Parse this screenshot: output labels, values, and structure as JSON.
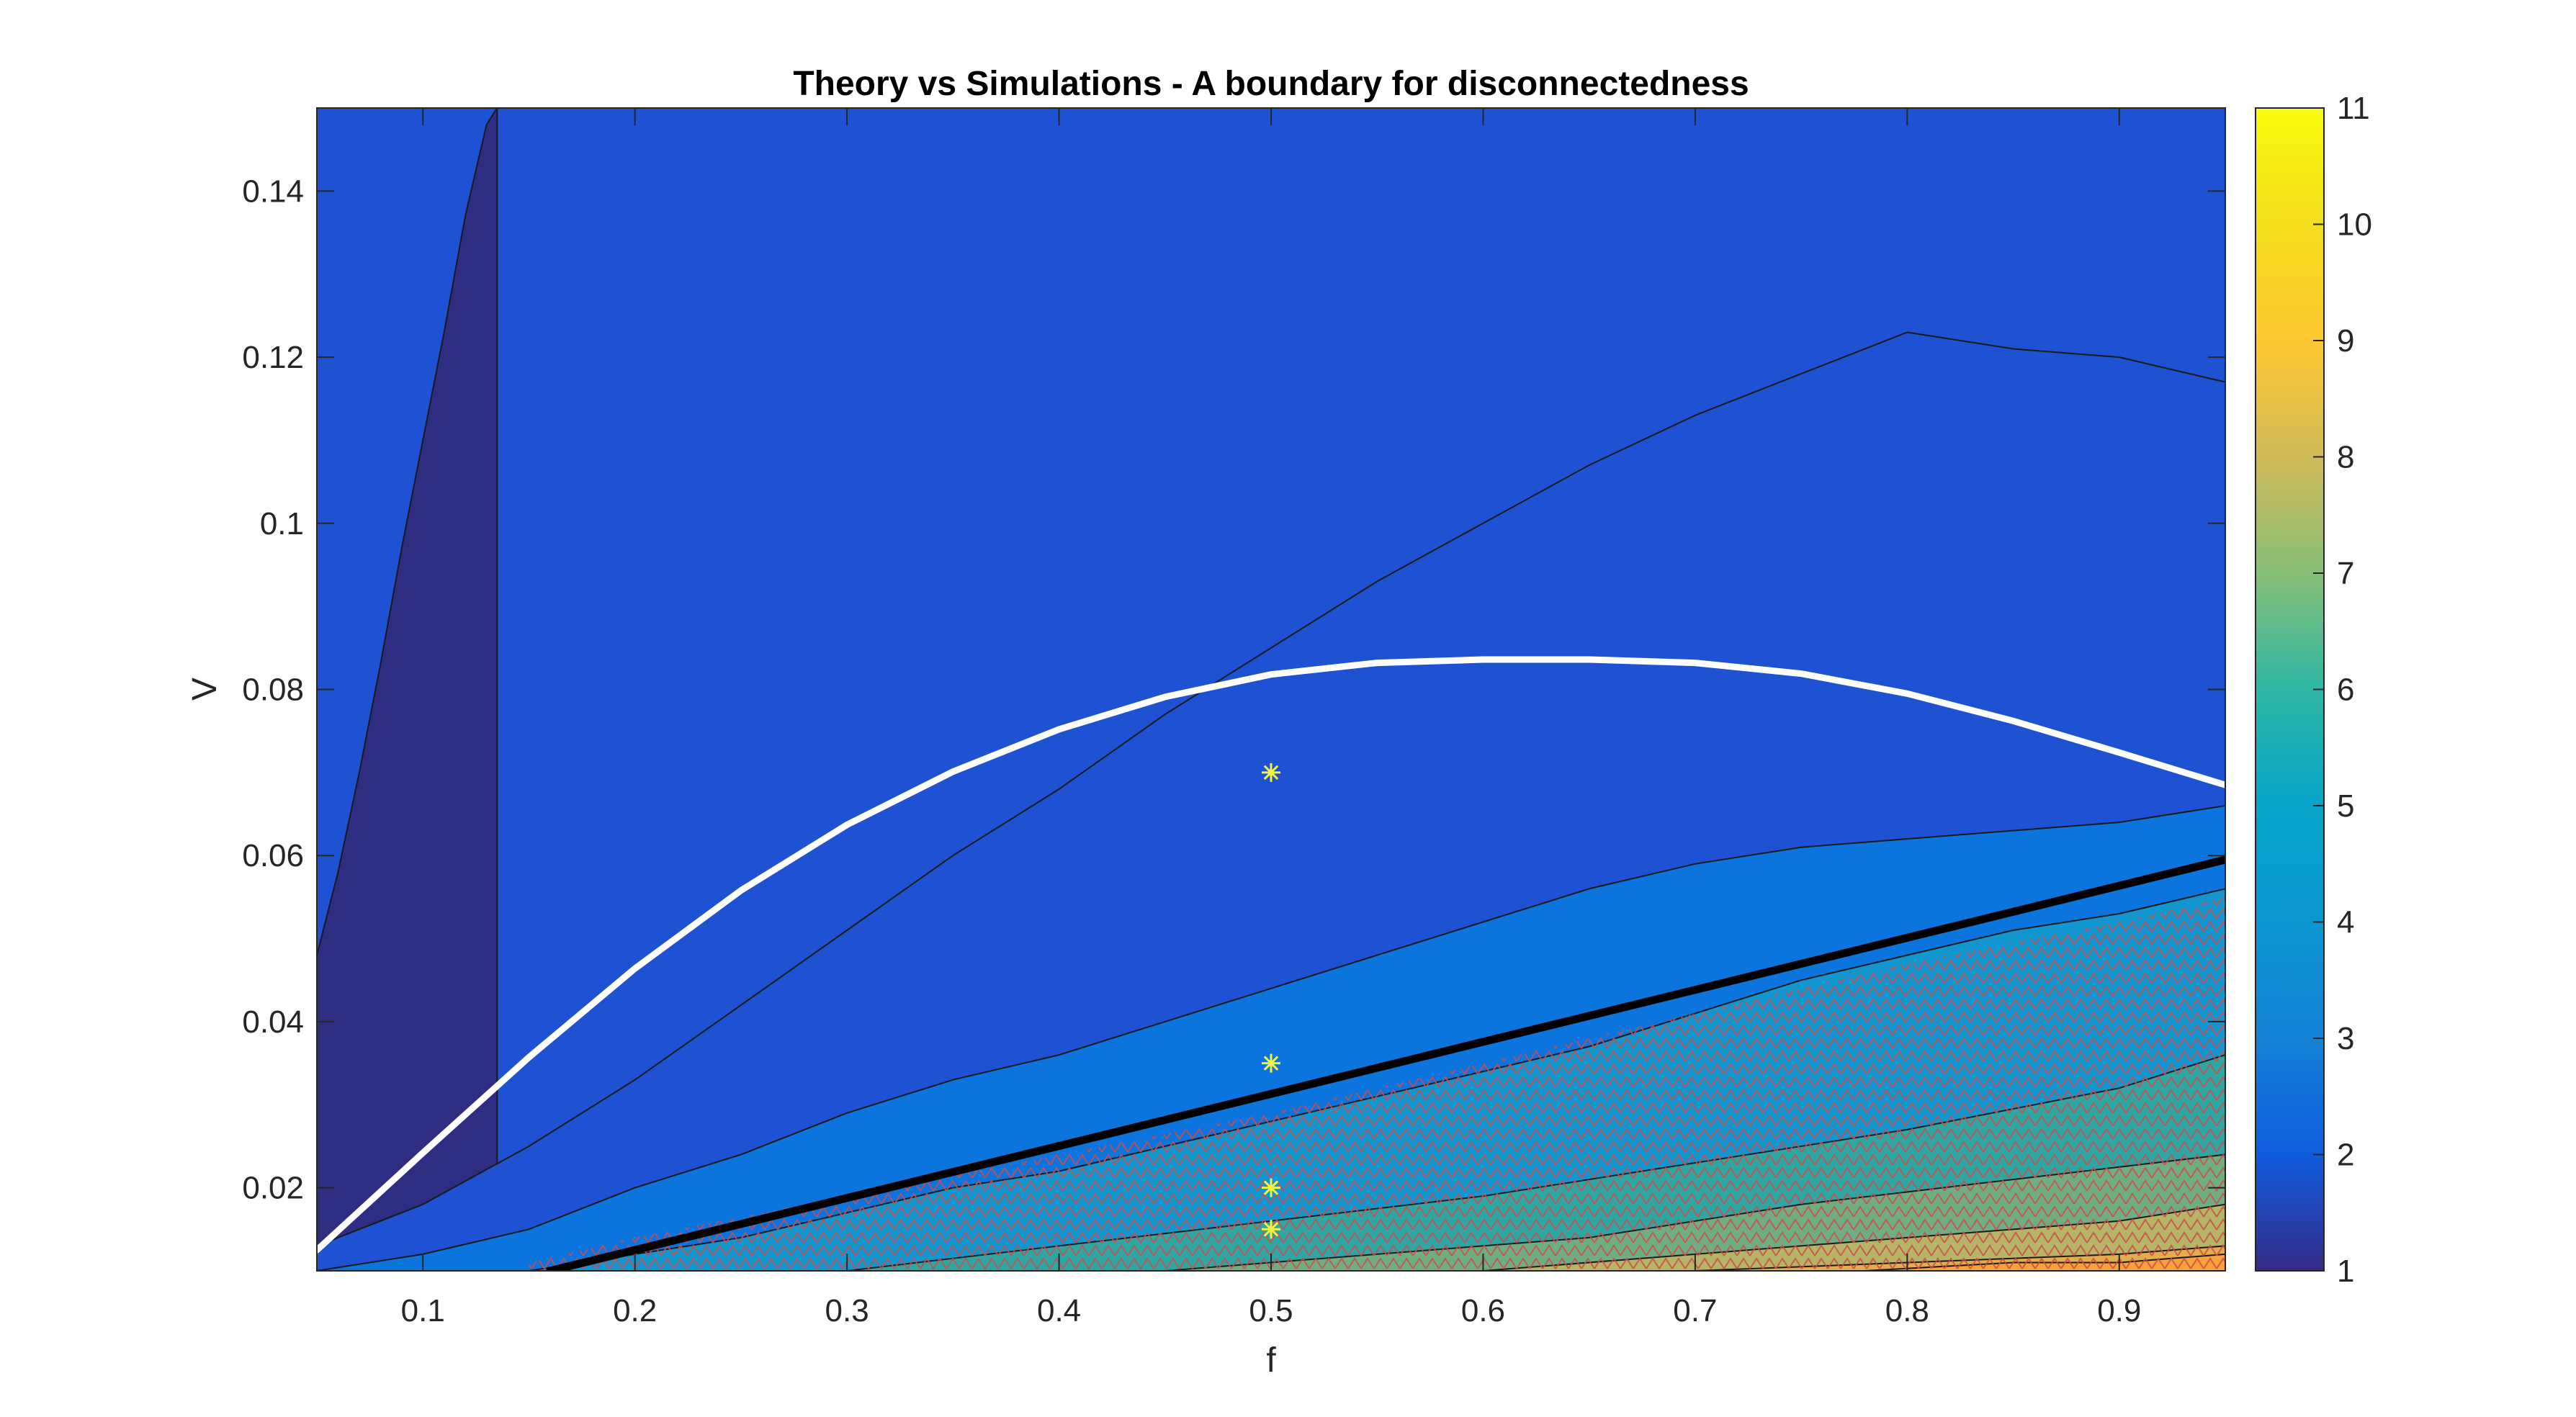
{
  "chart_data": {
    "type": "heatmap",
    "title": "Theory vs Simulations - A boundary for disconnectedness",
    "xlabel": "f",
    "ylabel": "V",
    "xlim": [
      0.05,
      0.95
    ],
    "ylim": [
      0.01,
      0.15
    ],
    "xticks": [
      0.1,
      0.2,
      0.3,
      0.4,
      0.5,
      0.6,
      0.7,
      0.8,
      0.9
    ],
    "yticks": [
      0.02,
      0.04,
      0.06,
      0.08,
      0.1,
      0.12,
      0.14
    ],
    "grid": false,
    "colorbar": {
      "range": [
        1,
        11
      ],
      "ticks": [
        1,
        2,
        3,
        4,
        5,
        6,
        7,
        8,
        9,
        10,
        11
      ],
      "colormap": [
        "#352a87",
        "#0f5cdd",
        "#1481d6",
        "#06a4ca",
        "#2eb7a4",
        "#87bf77",
        "#d1bb59",
        "#fec832",
        "#f9fb0e"
      ]
    },
    "contour_levels": [
      {
        "level": 2,
        "color": "#2f2d82",
        "upper": [
          [
            0.05,
            0.048
          ],
          [
            0.06,
            0.058
          ],
          [
            0.07,
            0.07
          ],
          [
            0.08,
            0.083
          ],
          [
            0.09,
            0.097
          ],
          [
            0.1,
            0.11
          ],
          [
            0.11,
            0.123
          ],
          [
            0.12,
            0.137
          ],
          [
            0.13,
            0.148
          ],
          [
            0.135,
            0.15
          ]
        ]
      },
      {
        "level": 3,
        "color": "#1f52d2",
        "upper": [
          [
            0.05,
            0.013
          ],
          [
            0.1,
            0.018
          ],
          [
            0.15,
            0.025
          ],
          [
            0.2,
            0.033
          ],
          [
            0.25,
            0.042
          ],
          [
            0.3,
            0.051
          ],
          [
            0.35,
            0.06
          ],
          [
            0.4,
            0.068
          ],
          [
            0.45,
            0.077
          ],
          [
            0.5,
            0.085
          ],
          [
            0.55,
            0.093
          ],
          [
            0.6,
            0.1
          ],
          [
            0.65,
            0.107
          ],
          [
            0.7,
            0.113
          ],
          [
            0.75,
            0.118
          ],
          [
            0.8,
            0.123
          ],
          [
            0.85,
            0.121
          ],
          [
            0.9,
            0.12
          ],
          [
            0.95,
            0.117
          ]
        ]
      },
      {
        "level": 4,
        "color": "#0b74dd",
        "upper": [
          [
            0.05,
            0.01
          ],
          [
            0.1,
            0.012
          ],
          [
            0.15,
            0.015
          ],
          [
            0.2,
            0.02
          ],
          [
            0.25,
            0.024
          ],
          [
            0.3,
            0.029
          ],
          [
            0.35,
            0.033
          ],
          [
            0.4,
            0.036
          ],
          [
            0.45,
            0.04
          ],
          [
            0.5,
            0.044
          ],
          [
            0.55,
            0.048
          ],
          [
            0.6,
            0.052
          ],
          [
            0.65,
            0.056
          ],
          [
            0.7,
            0.059
          ],
          [
            0.75,
            0.061
          ],
          [
            0.8,
            0.062
          ],
          [
            0.85,
            0.063
          ],
          [
            0.9,
            0.064
          ],
          [
            0.95,
            0.066
          ]
        ]
      },
      {
        "level": 5,
        "color": "#1296cf",
        "upper": [
          [
            0.15,
            0.01
          ],
          [
            0.2,
            0.012
          ],
          [
            0.25,
            0.014
          ],
          [
            0.3,
            0.017
          ],
          [
            0.35,
            0.02
          ],
          [
            0.4,
            0.022
          ],
          [
            0.45,
            0.025
          ],
          [
            0.5,
            0.028
          ],
          [
            0.55,
            0.031
          ],
          [
            0.6,
            0.034
          ],
          [
            0.65,
            0.037
          ],
          [
            0.7,
            0.041
          ],
          [
            0.75,
            0.045
          ],
          [
            0.8,
            0.048
          ],
          [
            0.85,
            0.051
          ],
          [
            0.9,
            0.053
          ],
          [
            0.95,
            0.056
          ]
        ]
      },
      {
        "level": 6,
        "color": "#2ea6a2",
        "upper": [
          [
            0.3,
            0.01
          ],
          [
            0.4,
            0.013
          ],
          [
            0.5,
            0.016
          ],
          [
            0.6,
            0.019
          ],
          [
            0.7,
            0.023
          ],
          [
            0.8,
            0.027
          ],
          [
            0.9,
            0.032
          ],
          [
            0.95,
            0.036
          ]
        ]
      },
      {
        "level": 7,
        "color": "#6fae83",
        "upper": [
          [
            0.45,
            0.01
          ],
          [
            0.55,
            0.012
          ],
          [
            0.65,
            0.014
          ],
          [
            0.75,
            0.018
          ],
          [
            0.85,
            0.021
          ],
          [
            0.95,
            0.024
          ]
        ]
      },
      {
        "level": 8,
        "color": "#b4b566",
        "upper": [
          [
            0.6,
            0.01
          ],
          [
            0.7,
            0.012
          ],
          [
            0.8,
            0.014
          ],
          [
            0.9,
            0.016
          ],
          [
            0.95,
            0.018
          ]
        ]
      },
      {
        "level": 9,
        "color": "#e1ae4c",
        "upper": [
          [
            0.7,
            0.01
          ],
          [
            0.8,
            0.011
          ],
          [
            0.9,
            0.012
          ],
          [
            0.95,
            0.013
          ]
        ]
      },
      {
        "level": 10,
        "color": "#f8a33a",
        "upper": [
          [
            0.78,
            0.01
          ],
          [
            0.85,
            0.011
          ],
          [
            0.9,
            0.011
          ],
          [
            0.95,
            0.012
          ]
        ]
      }
    ],
    "hatched_region": {
      "marker": "triangle",
      "color": "#d24a4a",
      "upper": [
        [
          0.15,
          0.011
        ],
        [
          0.2,
          0.014
        ],
        [
          0.3,
          0.019
        ],
        [
          0.4,
          0.024
        ],
        [
          0.5,
          0.029
        ],
        [
          0.6,
          0.035
        ],
        [
          0.7,
          0.041
        ],
        [
          0.8,
          0.047
        ],
        [
          0.9,
          0.052
        ],
        [
          0.95,
          0.055
        ]
      ],
      "lower": 0.01
    },
    "series": [
      {
        "type": "curve",
        "color": "#ffffff",
        "x": [
          0.05,
          0.1,
          0.15,
          0.2,
          0.25,
          0.3,
          0.35,
          0.4,
          0.45,
          0.5,
          0.55,
          0.6,
          0.65,
          0.7,
          0.75,
          0.8,
          0.85,
          0.9,
          0.95
        ],
        "y": [
          0.0125,
          0.0242,
          0.0357,
          0.0464,
          0.0558,
          0.0637,
          0.0701,
          0.0752,
          0.0791,
          0.0818,
          0.0832,
          0.0836,
          0.0836,
          0.0832,
          0.0819,
          0.0795,
          0.0762,
          0.0724,
          0.0685
        ]
      },
      {
        "type": "line",
        "color": "#000000",
        "x": [
          0.16,
          0.95
        ],
        "y": [
          0.01,
          0.0595
        ]
      },
      {
        "type": "markers",
        "marker": "asterisk",
        "color": "#f4f440",
        "x": [
          0.5,
          0.5,
          0.5,
          0.5
        ],
        "y": [
          0.07,
          0.035,
          0.02,
          0.015
        ]
      }
    ]
  }
}
